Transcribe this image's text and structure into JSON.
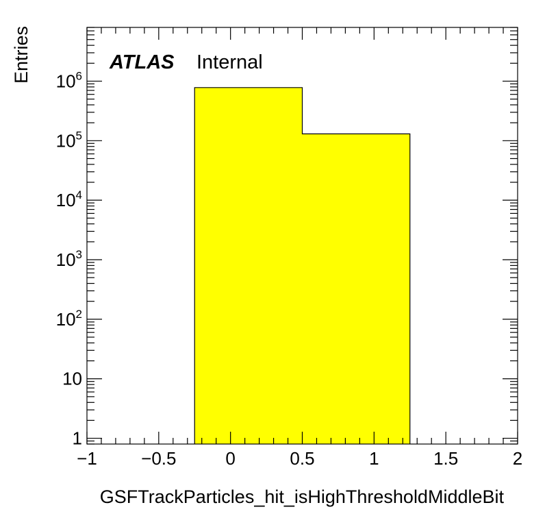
{
  "chart_data": {
    "type": "bar",
    "style": "histogram",
    "xlabel": "GSFTrackParticles_hit_isHighThresholdMiddleBit",
    "ylabel": "Entries",
    "xlim": [
      -1,
      2
    ],
    "ylim": [
      0.8,
      8000000
    ],
    "yscale": "log",
    "x_ticks": [
      {
        "value": -1,
        "label": "−1"
      },
      {
        "value": -0.5,
        "label": "−0.5"
      },
      {
        "value": 0,
        "label": "0"
      },
      {
        "value": 0.5,
        "label": "0.5"
      },
      {
        "value": 1,
        "label": "1"
      },
      {
        "value": 1.5,
        "label": "1.5"
      },
      {
        "value": 2,
        "label": "2"
      }
    ],
    "y_ticks": [
      {
        "value": 1,
        "base": "1",
        "exp": ""
      },
      {
        "value": 10,
        "base": "10",
        "exp": ""
      },
      {
        "value": 100,
        "base": "10",
        "exp": "2"
      },
      {
        "value": 1000,
        "base": "10",
        "exp": "3"
      },
      {
        "value": 10000,
        "base": "10",
        "exp": "4"
      },
      {
        "value": 100000,
        "base": "10",
        "exp": "5"
      },
      {
        "value": 1000000,
        "base": "10",
        "exp": "6"
      }
    ],
    "bins": [
      {
        "low": -0.25,
        "high": 0.5,
        "value": 780000
      },
      {
        "low": 0.5,
        "high": 1.25,
        "value": 130000
      }
    ],
    "fill_color": "#ffff00",
    "line_color": "#000000",
    "grid": false,
    "annotation": {
      "atlas": "ATLAS",
      "status": "Internal"
    }
  }
}
